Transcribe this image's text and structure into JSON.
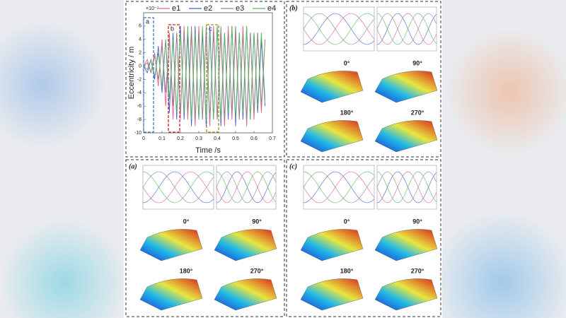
{
  "chart_data": {
    "type": "line",
    "x_label": "Time /s",
    "y_label": "Eccentricity / m",
    "y_multiplier": "×10⁻⁷",
    "annotations": [
      "a",
      "b",
      "c"
    ],
    "x": [
      0,
      0.02,
      0.04,
      0.06,
      0.08,
      0.1,
      0.12,
      0.14,
      0.16,
      0.18,
      0.2,
      0.22,
      0.24,
      0.26,
      0.28,
      0.3,
      0.32,
      0.34,
      0.36,
      0.38,
      0.4,
      0.42,
      0.44,
      0.46,
      0.48,
      0.5,
      0.52,
      0.54,
      0.56,
      0.58,
      0.6,
      0.62,
      0.64,
      0.66
    ],
    "series": [
      {
        "name": "e1",
        "color": "#e8608a",
        "values": [
          0,
          1,
          -1,
          2,
          -3,
          4,
          -6,
          5,
          -8,
          5,
          -8,
          6,
          -8,
          5,
          -9,
          6,
          -8,
          5,
          -9,
          6,
          -8,
          5,
          -9,
          6,
          -8,
          5,
          -8,
          6,
          -9,
          5,
          -8,
          5,
          -7,
          4
        ]
      },
      {
        "name": "e2",
        "color": "#4a5fd8",
        "values": [
          0,
          -1,
          1,
          -2,
          3,
          -4,
          4,
          -7,
          5,
          -8,
          6,
          -8,
          5,
          -9,
          6,
          -8,
          5,
          -9,
          6,
          -8,
          6,
          -9,
          5,
          -8,
          6,
          -9,
          5,
          -8,
          6,
          -8,
          5,
          -7,
          4,
          -6
        ]
      },
      {
        "name": "e3",
        "color": "#8a8a8a",
        "values": [
          0,
          0.5,
          -1,
          1.5,
          -2,
          3,
          -4,
          4,
          -6,
          5,
          -7,
          5,
          -7,
          6,
          -8,
          5,
          -8,
          6,
          -8,
          5,
          -8,
          6,
          -8,
          5,
          -7,
          6,
          -8,
          5,
          -8,
          5,
          -7,
          5,
          -6,
          4
        ]
      },
      {
        "name": "e4",
        "color": "#5cb85c",
        "values": [
          0,
          -0.5,
          1,
          -1.5,
          2,
          -3,
          4,
          -5,
          4,
          -7,
          5,
          -7,
          6,
          -8,
          5,
          -8,
          6,
          -8,
          5,
          -8,
          6,
          -8,
          5,
          -7,
          6,
          -8,
          5,
          -7,
          6,
          -8,
          5,
          -6,
          5,
          -5
        ]
      }
    ],
    "xlim": [
      0,
      0.7
    ],
    "xticks": [
      0,
      0.1,
      0.2,
      0.3,
      0.4,
      0.5,
      0.6,
      0.7
    ],
    "ylim": [
      -10,
      8
    ],
    "yticks": [
      -10,
      -8,
      -6,
      -4,
      -2,
      0,
      2,
      4,
      6
    ],
    "grid": false,
    "legend": "top"
  },
  "panels": [
    {
      "label": "(b)",
      "angles": [
        "0°",
        "90°",
        "180°",
        "270°"
      ]
    },
    {
      "label": "(a)",
      "angles": [
        "0°",
        "90°",
        "180°",
        "270°"
      ]
    },
    {
      "label": "(c)",
      "angles": [
        "0°",
        "90°",
        "180°",
        "270°"
      ]
    }
  ]
}
